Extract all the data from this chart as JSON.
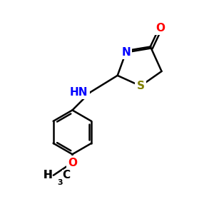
{
  "background": "#ffffff",
  "atom_colors": {
    "O": "#ff0000",
    "N": "#0000ff",
    "S": "#808000",
    "C": "#000000",
    "H": "#000000"
  },
  "bond_width": 1.8,
  "font_size_atom": 11,
  "font_size_subscript": 8,
  "xlim": [
    0,
    10
  ],
  "ylim": [
    0,
    10
  ]
}
